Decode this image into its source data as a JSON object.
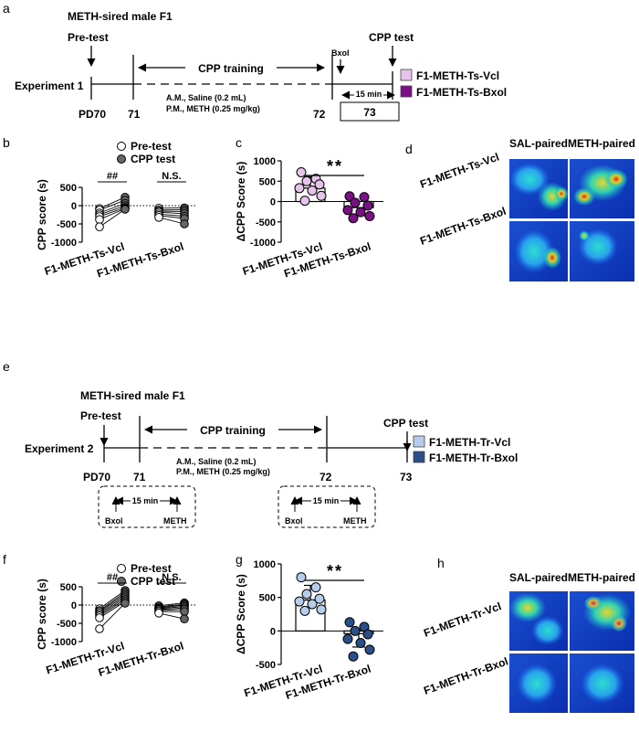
{
  "colors": {
    "vcl_s": "#e6c3ea",
    "bxol_s": "#7b0f86",
    "vcl_r": "#b5cdeb",
    "bxol_r": "#2b4f88",
    "pre": "#ffffff",
    "cpp": "#666666"
  },
  "panel_a": {
    "letter": "a",
    "sired": "METH-sired male F1",
    "pretest": "Pre-test",
    "cpptest": "CPP test",
    "training": "CPP training",
    "experiment": "Experiment 1",
    "bxol": "Bxol",
    "am": "A.M., Saline (0.2 mL)",
    "pm": "P.M., METH (0.25 mg/kg)",
    "min15": "15 min",
    "days": [
      "PD70",
      "71",
      "72",
      "73"
    ],
    "legend": [
      "F1-METH-Ts-Vcl",
      "F1-METH-Ts-Bxol"
    ]
  },
  "panel_e": {
    "letter": "e",
    "sired": "METH-sired male F1",
    "pretest": "Pre-test",
    "cpptest": "CPP test",
    "training": "CPP training",
    "experiment": "Experiment 2",
    "am": "A.M., Saline (0.2 mL)",
    "pm": "P.M., METH (0.25 mg/kg)",
    "min15": "15 min",
    "bxol": "Bxol",
    "meth": "METH",
    "days": [
      "PD70",
      "71",
      "72",
      "73"
    ],
    "legend": [
      "F1-METH-Tr-Vcl",
      "F1-METH-Tr-Bxol"
    ]
  },
  "panel_d": {
    "letter": "d",
    "col1": "SAL-paired",
    "col2": "METH-paired",
    "rows": [
      "F1-METH-Ts-Vcl",
      "F1-METH-Ts-Bxol"
    ]
  },
  "panel_h": {
    "letter": "h",
    "col1": "SAL-paired",
    "col2": "METH-paired",
    "rows": [
      "F1-METH-Tr-Vcl",
      "F1-METH-Tr-Bxol"
    ]
  },
  "chart_data": [
    {
      "id": "b",
      "letter": "b",
      "type": "scatter",
      "ylabel": "CPP score (s)",
      "ylim": [
        -1000,
        500
      ],
      "yticks": [
        500,
        0,
        -500,
        -1000
      ],
      "legend": [
        "Pre-test",
        "CPP test"
      ],
      "groups": [
        {
          "label": "F1-METH-Ts-Vcl",
          "sig": "##",
          "pre": [
            -80,
            -120,
            -200,
            -250,
            -300,
            -380,
            -580
          ],
          "cpp": [
            230,
            150,
            60,
            0,
            -50,
            -80,
            -100
          ]
        },
        {
          "label": "F1-METH-Ts-Bxol",
          "sig": "N.S.",
          "pre": [
            -70,
            -120,
            -150,
            -180,
            -230,
            -270,
            -320
          ],
          "cpp": [
            -60,
            -110,
            -160,
            -220,
            -290,
            -350,
            -500
          ]
        }
      ]
    },
    {
      "id": "c",
      "letter": "c",
      "type": "bar",
      "ylabel": "ΔCPP Score (s)",
      "ylim": [
        -1000,
        1000
      ],
      "yticks": [
        1000,
        500,
        0,
        -500,
        -1000
      ],
      "sig": "**",
      "categories": [
        "F1-METH-Ts-Vcl",
        "F1-METH-Ts-Bxol"
      ],
      "values": [
        330,
        -150
      ],
      "sd": [
        280,
        200
      ],
      "points": [
        [
          720,
          560,
          500,
          420,
          330,
          270,
          140,
          20
        ],
        [
          130,
          110,
          -30,
          -100,
          -210,
          -260,
          -360,
          -410
        ]
      ]
    },
    {
      "id": "f",
      "letter": "f",
      "type": "scatter",
      "ylabel": "CPP score (s)",
      "ylim": [
        -1000,
        500
      ],
      "yticks": [
        500,
        0,
        -500,
        -1000
      ],
      "legend": [
        "Pre-test",
        "CPP test"
      ],
      "groups": [
        {
          "label": "F1-METH-Tr-Vcl",
          "sig": "##",
          "pre": [
            -100,
            -150,
            -180,
            -220,
            -260,
            -300,
            -350,
            -650
          ],
          "cpp": [
            400,
            350,
            300,
            250,
            200,
            150,
            100,
            50
          ]
        },
        {
          "label": "F1-METH-Tr-Bxol",
          "sig": "N.S.",
          "pre": [
            -20,
            -50,
            -80,
            -100,
            -120,
            -150,
            -180,
            -220
          ],
          "cpp": [
            60,
            20,
            0,
            -40,
            -80,
            -120,
            -180,
            -380
          ]
        }
      ]
    },
    {
      "id": "g",
      "letter": "g",
      "type": "bar",
      "ylabel": "ΔCPP Score (s)",
      "ylim": [
        -500,
        1000
      ],
      "yticks": [
        1000,
        500,
        0,
        -500
      ],
      "sig": "**",
      "categories": [
        "F1-METH-Tr-Vcl",
        "F1-METH-Tr-Bxol"
      ],
      "values": [
        460,
        -40
      ],
      "sd": [
        220,
        200
      ],
      "points": [
        [
          800,
          650,
          550,
          480,
          440,
          400,
          320,
          300
        ],
        [
          130,
          60,
          0,
          -50,
          -120,
          -180,
          -280,
          -380
        ]
      ]
    }
  ]
}
